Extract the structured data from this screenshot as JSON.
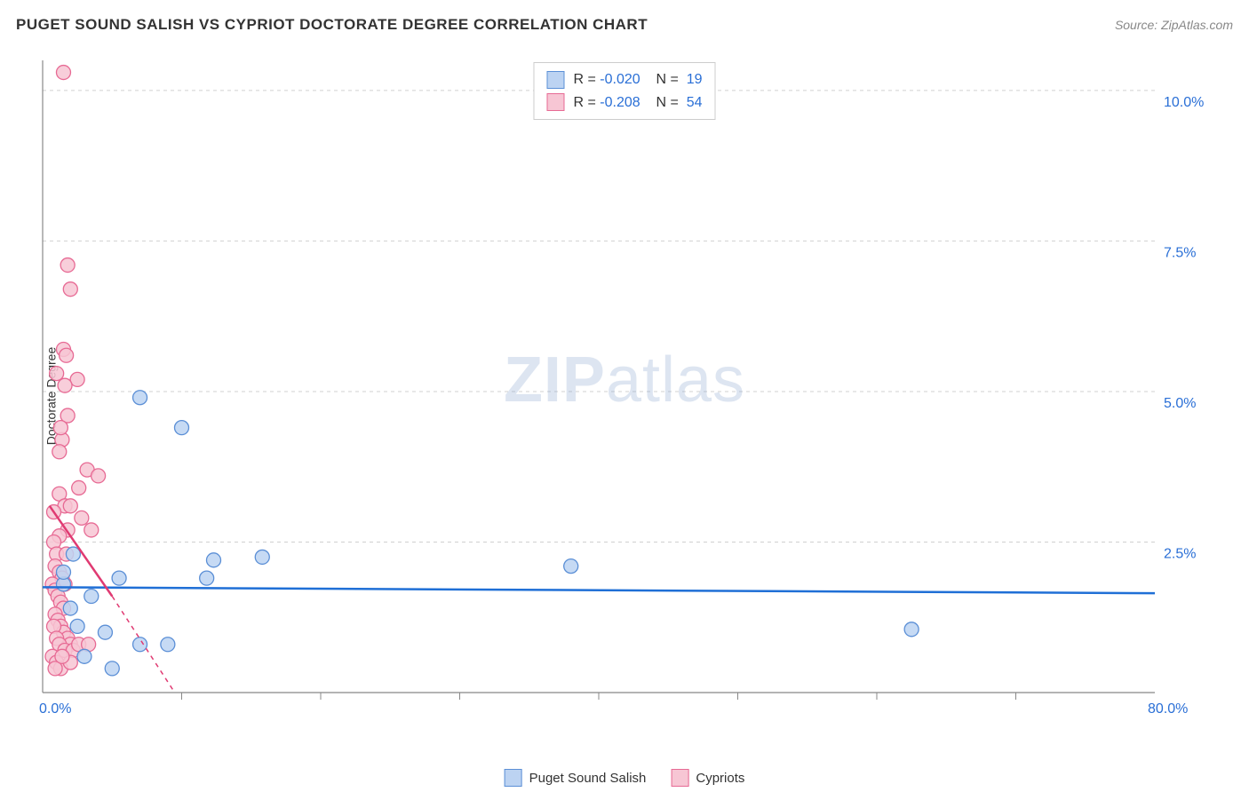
{
  "header": {
    "title": "PUGET SOUND SALISH VS CYPRIOT DOCTORATE DEGREE CORRELATION CHART",
    "source": "Source: ZipAtlas.com"
  },
  "ylabel": "Doctorate Degree",
  "watermark": {
    "bold": "ZIP",
    "rest": "atlas"
  },
  "chart": {
    "type": "scatter",
    "background_color": "#ffffff",
    "grid_color": "#d0d0d0",
    "axis_color": "#888888",
    "xlim": [
      0,
      80
    ],
    "ylim": [
      0,
      10.5
    ],
    "ytick_step": 2.5,
    "ytick_labels": [
      "2.5%",
      "5.0%",
      "7.5%",
      "10.0%"
    ],
    "xlabel_min": "0.0%",
    "xlabel_max": "80.0%",
    "x_minor_ticks": [
      10,
      20,
      30,
      40,
      50,
      60,
      70
    ],
    "marker_radius": 8,
    "marker_stroke_width": 1.3,
    "trend_line_width": 2.5,
    "trend_dash_width": 1.5,
    "label_color": "#2a6fd6",
    "series": [
      {
        "name": "Puget Sound Salish",
        "fill": "#bcd3f2",
        "stroke": "#5b8fd6",
        "trend_color": "#1f6fd6",
        "R": "-0.020",
        "N": "19",
        "points": [
          [
            7.0,
            4.9
          ],
          [
            10.0,
            4.4
          ],
          [
            15.8,
            2.25
          ],
          [
            12.3,
            2.2
          ],
          [
            11.8,
            1.9
          ],
          [
            5.5,
            1.9
          ],
          [
            3.5,
            1.6
          ],
          [
            1.5,
            1.8
          ],
          [
            2.0,
            1.4
          ],
          [
            2.5,
            1.1
          ],
          [
            38.0,
            2.1
          ],
          [
            62.5,
            1.05
          ],
          [
            7.0,
            0.8
          ],
          [
            9.0,
            0.8
          ],
          [
            5.0,
            0.4
          ],
          [
            3.0,
            0.6
          ],
          [
            4.5,
            1.0
          ],
          [
            1.5,
            2.0
          ],
          [
            2.2,
            2.3
          ]
        ],
        "trend": {
          "x1": 0,
          "y1": 1.75,
          "x2": 80,
          "y2": 1.65
        }
      },
      {
        "name": "Cypriots",
        "fill": "#f7c6d4",
        "stroke": "#e76a94",
        "trend_color": "#e03a72",
        "R": "-0.208",
        "N": "54",
        "points": [
          [
            1.5,
            10.3
          ],
          [
            1.8,
            7.1
          ],
          [
            2.0,
            6.7
          ],
          [
            1.5,
            5.7
          ],
          [
            1.7,
            5.6
          ],
          [
            2.5,
            5.2
          ],
          [
            1.6,
            5.1
          ],
          [
            1.8,
            4.6
          ],
          [
            1.4,
            4.2
          ],
          [
            1.2,
            4.0
          ],
          [
            3.2,
            3.7
          ],
          [
            2.6,
            3.4
          ],
          [
            1.2,
            3.3
          ],
          [
            2.8,
            2.9
          ],
          [
            1.8,
            2.7
          ],
          [
            1.2,
            2.6
          ],
          [
            0.8,
            2.5
          ],
          [
            1.0,
            2.3
          ],
          [
            1.6,
            3.1
          ],
          [
            0.8,
            3.0
          ],
          [
            0.9,
            2.1
          ],
          [
            1.2,
            2.0
          ],
          [
            1.4,
            1.9
          ],
          [
            1.6,
            1.8
          ],
          [
            0.7,
            1.8
          ],
          [
            0.9,
            1.7
          ],
          [
            1.1,
            1.6
          ],
          [
            1.3,
            1.5
          ],
          [
            1.5,
            1.4
          ],
          [
            0.9,
            1.3
          ],
          [
            1.1,
            1.2
          ],
          [
            1.3,
            1.1
          ],
          [
            1.5,
            1.0
          ],
          [
            1.8,
            0.9
          ],
          [
            2.0,
            0.8
          ],
          [
            0.8,
            1.1
          ],
          [
            1.0,
            0.9
          ],
          [
            1.2,
            0.8
          ],
          [
            1.6,
            0.7
          ],
          [
            2.2,
            0.7
          ],
          [
            2.6,
            0.8
          ],
          [
            3.3,
            0.8
          ],
          [
            0.7,
            0.6
          ],
          [
            1.0,
            0.5
          ],
          [
            1.3,
            0.4
          ],
          [
            2.0,
            0.5
          ],
          [
            0.9,
            0.4
          ],
          [
            1.4,
            0.6
          ],
          [
            2.0,
            3.1
          ],
          [
            1.7,
            2.3
          ],
          [
            3.5,
            2.7
          ],
          [
            4.0,
            3.6
          ],
          [
            1.0,
            5.3
          ],
          [
            1.3,
            4.4
          ]
        ],
        "trend_solid": {
          "x1": 0.5,
          "y1": 3.1,
          "x2": 5.0,
          "y2": 1.6
        },
        "trend_dash": {
          "x1": 5.0,
          "y1": 1.6,
          "x2": 9.5,
          "y2": 0.0
        }
      }
    ]
  },
  "stat_legend": {
    "R_label": "R",
    "N_label": "N",
    "eq": "="
  },
  "series_legend": {
    "items": [
      "Puget Sound Salish",
      "Cypriots"
    ]
  }
}
